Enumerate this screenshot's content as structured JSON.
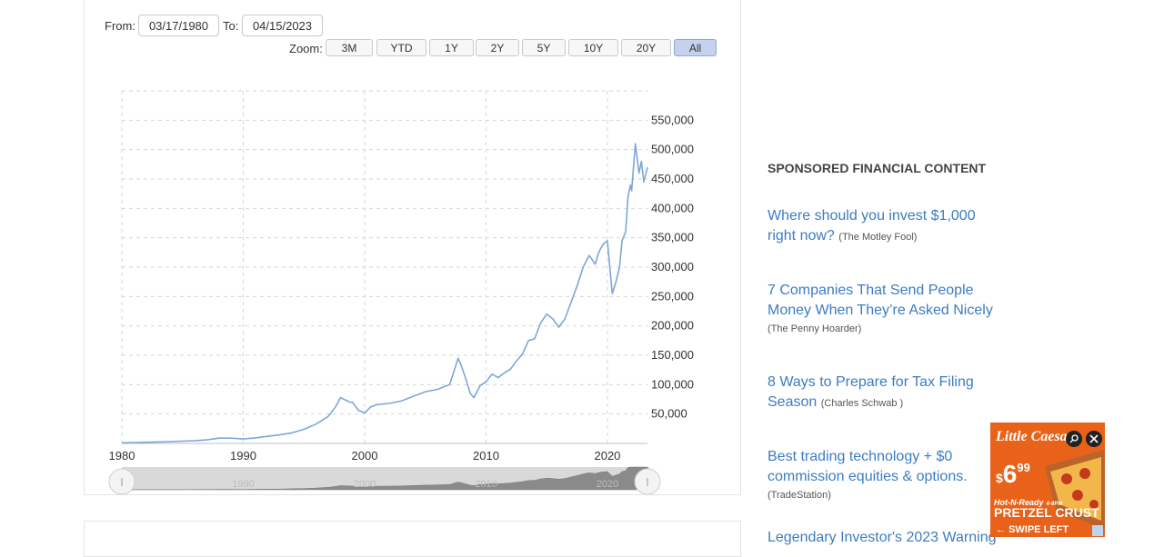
{
  "range": {
    "from_label": "From:",
    "from_value": "03/17/1980",
    "to_label": "To:",
    "to_value": "04/15/2023"
  },
  "zoom": {
    "label": "Zoom:",
    "buttons": [
      "3M",
      "YTD",
      "1Y",
      "2Y",
      "5Y",
      "10Y",
      "20Y",
      "All"
    ],
    "active": "All"
  },
  "navigator": {
    "tick_labels": [
      "1980",
      "1990",
      "2000",
      "2010",
      "2020"
    ]
  },
  "chart_data": {
    "type": "line",
    "series": [
      {
        "x": [
          1980,
          1981,
          1982,
          1983,
          1984,
          1985,
          1986,
          1987,
          1988,
          1989,
          1990,
          1991,
          1992,
          1993,
          1994,
          1995,
          1996,
          1997,
          1997.6,
          1998,
          1998.8,
          1999,
          1999.5,
          2000,
          2000.5,
          2001,
          2002,
          2003,
          2004,
          2005,
          2006,
          2007,
          2007.7,
          2008,
          2008.3,
          2008.7,
          2009,
          2009.5,
          2010,
          2010.5,
          2011,
          2011.5,
          2012,
          2012.5,
          2013,
          2013.5,
          2014,
          2014.5,
          2015,
          2015.5,
          2016,
          2016.5,
          2017,
          2017.5,
          2018,
          2018.5,
          2019,
          2019.2,
          2019.4,
          2019.7,
          2020,
          2020.4,
          2020.7,
          2021,
          2021.2,
          2021.5,
          2021.7,
          2021.9,
          2022,
          2022.3,
          2022.6,
          2022.8,
          2023,
          2023.3
        ],
        "y": [
          1000,
          1500,
          2000,
          2500,
          3000,
          3800,
          4500,
          6000,
          9000,
          9000,
          7500,
          9500,
          12000,
          14500,
          18000,
          24000,
          33000,
          46000,
          62000,
          78000,
          70000,
          70000,
          56000,
          52000,
          62000,
          66000,
          68000,
          72000,
          80000,
          88000,
          92000,
          100000,
          145000,
          130000,
          112000,
          85000,
          78000,
          98000,
          105000,
          118000,
          112000,
          120000,
          126000,
          140000,
          152000,
          175000,
          178000,
          205000,
          220000,
          212000,
          198000,
          212000,
          240000,
          268000,
          300000,
          320000,
          305000,
          320000,
          330000,
          340000,
          345000,
          255000,
          275000,
          300000,
          345000,
          360000,
          420000,
          440000,
          430000,
          510000,
          460000,
          480000,
          445000,
          470000
        ]
      }
    ],
    "x_ticks": [
      "1980",
      "1990",
      "2000",
      "2010",
      "2020"
    ],
    "y_ticks": [
      "50,000",
      "100,000",
      "150,000",
      "200,000",
      "250,000",
      "300,000",
      "350,000",
      "400,000",
      "450,000",
      "500,000",
      "550,000"
    ],
    "xlim": [
      1980,
      2023.3
    ],
    "ylim": [
      0,
      600000
    ],
    "grid": true,
    "line_color": "#7ea6d8"
  },
  "sponsored": {
    "title": "SPONSORED FINANCIAL CONTENT",
    "items": [
      {
        "text": "Where should you invest $1,000 right now?",
        "source": "(The Motley Fool)"
      },
      {
        "text": "7 Companies That Send People Money When They’re Asked Nicely",
        "source": "(The Penny Hoarder)"
      },
      {
        "text": "8 Ways to Prepare for Tax Filing Season",
        "source": "(Charles Schwab )"
      },
      {
        "text": "Best trading technology + $0 commission equities & options.",
        "source": "(TradeStation)"
      },
      {
        "text": "Legendary Investor's 2023 Warning",
        "source": ""
      }
    ]
  },
  "promo": {
    "brand": "Little Caesars",
    "price_dollar": "$",
    "price_main": "6",
    "price_cents": "99",
    "tagline": "Hot-N-Ready",
    "tag_small": "4-8PM",
    "product": "PRETZEL CRUST",
    "cta": "SWIPE LEFT",
    "colors": {
      "orange": "#e8621a",
      "cheese": "#f3b64a",
      "crust": "#b8642a"
    }
  }
}
